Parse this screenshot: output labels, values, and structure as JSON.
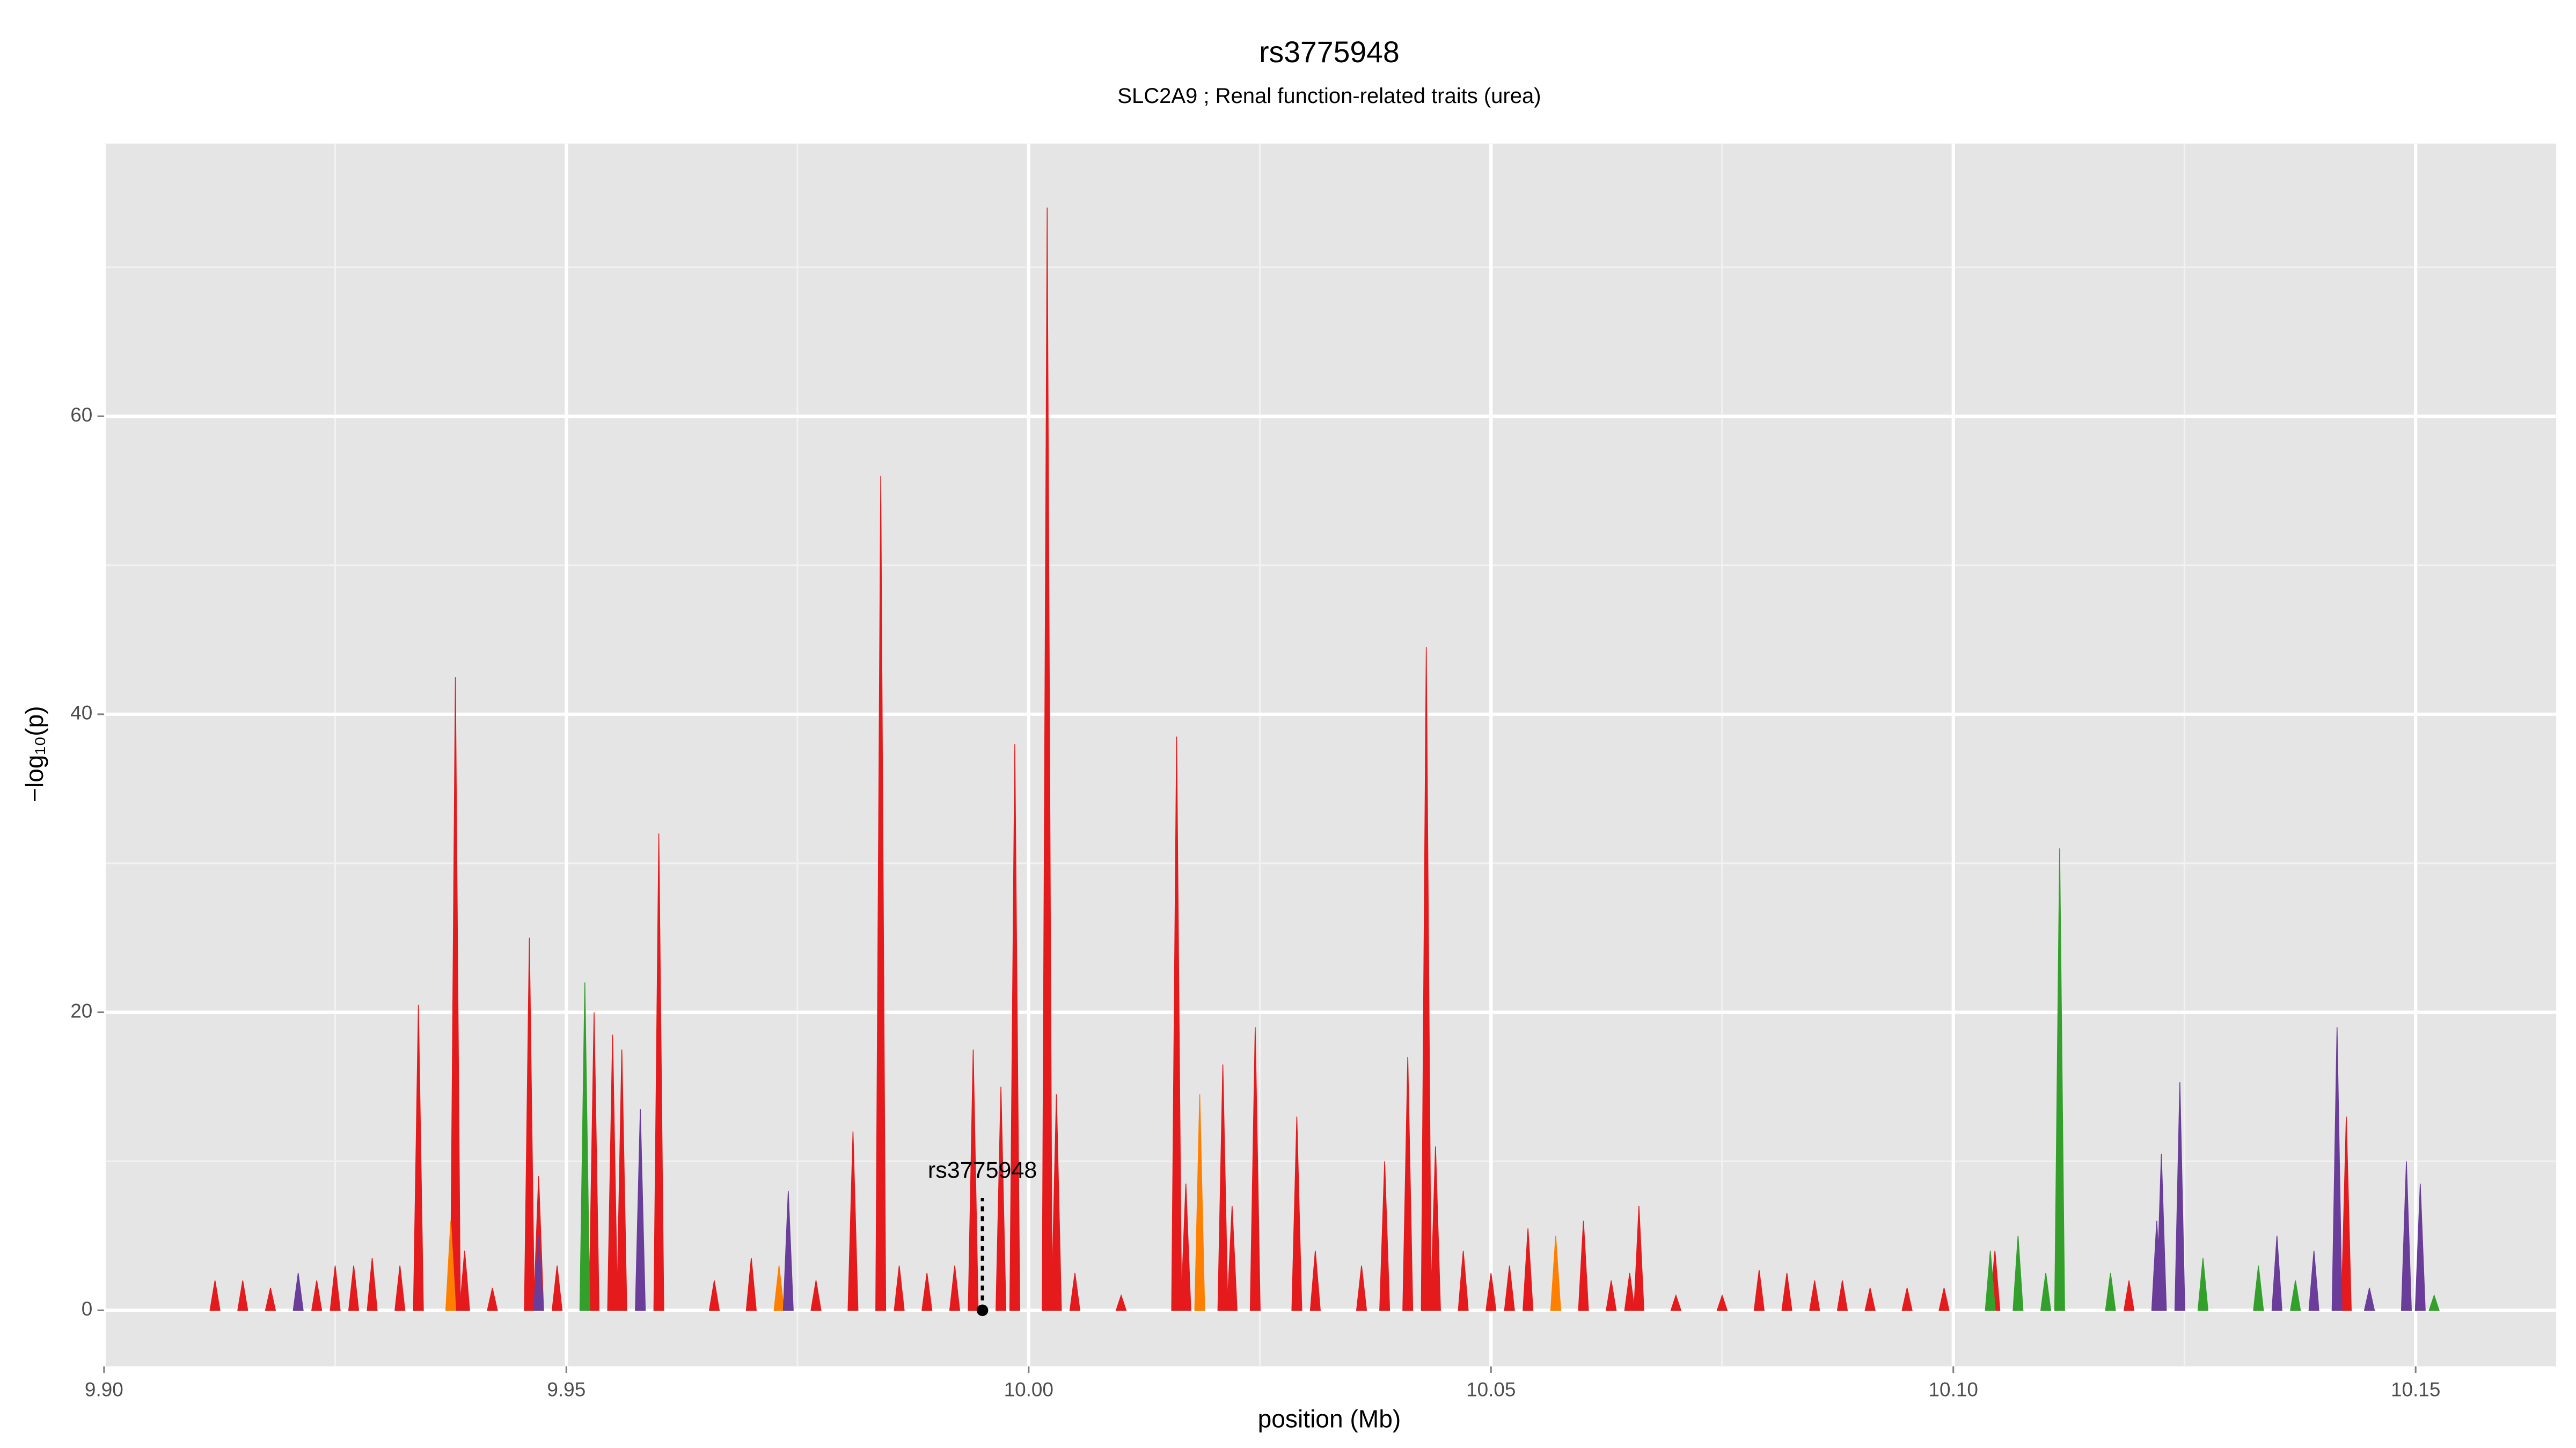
{
  "chart_data": {
    "type": "area",
    "title": "rs3775948",
    "subtitle": "SLC2A9 ; Renal function-related traits (urea)",
    "x_label": "position (Mb)",
    "y_label": "−log₁₀(p)",
    "xlim": [
      9.9,
      10.1652
    ],
    "ylim": [
      -3.76,
      78.3
    ],
    "xticks": [
      {
        "value": 9.9,
        "label": "9.90"
      },
      {
        "value": 9.95,
        "label": "9.95"
      },
      {
        "value": 10.0,
        "label": "10.00"
      },
      {
        "value": 10.05,
        "label": "10.05"
      },
      {
        "value": 10.1,
        "label": "10.10"
      },
      {
        "value": 10.15,
        "label": "10.15"
      }
    ],
    "yticks": [
      0,
      20,
      40,
      60
    ],
    "grid": true,
    "minor_grid": true,
    "series": [
      {
        "color": "#e41a1c",
        "x": [
          9.912,
          9.915,
          9.918,
          9.923,
          9.925,
          9.927,
          9.929,
          9.932,
          9.934,
          9.938,
          9.939,
          9.942,
          9.946,
          9.947,
          9.949,
          9.953,
          9.955,
          9.956,
          9.96,
          9.966,
          9.97,
          9.977,
          9.981,
          9.984,
          9.986,
          9.989,
          9.992,
          9.994,
          9.997,
          9.9985,
          10.002,
          10.003,
          10.005,
          10.01,
          10.016,
          10.017,
          10.021,
          10.022,
          10.0245,
          10.029,
          10.031,
          10.036,
          10.0385,
          10.041,
          10.043,
          10.044,
          10.047,
          10.05,
          10.052,
          10.054,
          10.06,
          10.063,
          10.065,
          10.066,
          10.07,
          10.075,
          10.079,
          10.082,
          10.085,
          10.088,
          10.091,
          10.095,
          10.099,
          10.1045,
          10.119,
          10.1425
        ],
        "values": [
          2,
          2,
          1.5,
          2,
          3,
          3,
          3.5,
          3,
          20.5,
          42.5,
          4,
          1.5,
          25,
          9,
          3,
          20,
          18.5,
          17.5,
          32,
          2,
          3.5,
          2,
          12,
          56,
          3,
          2.5,
          3,
          17.5,
          15,
          38,
          74,
          14.5,
          2.5,
          1,
          38.5,
          8.5,
          16.5,
          7,
          19,
          13,
          4,
          3,
          10,
          17,
          44.5,
          11,
          4,
          2.5,
          3,
          5.5,
          6,
          2,
          2.5,
          7,
          1,
          1,
          2.7,
          2.5,
          2,
          2,
          1.5,
          1.5,
          1.5,
          4,
          2,
          13
        ]
      },
      {
        "color": "#ff7f00",
        "x": [
          9.9375,
          9.973,
          10.0185,
          10.057
        ],
        "values": [
          6,
          3,
          14.5,
          5
        ]
      },
      {
        "color": "#33a02c",
        "x": [
          9.952,
          10.104,
          10.107,
          10.11,
          10.1115,
          10.117,
          10.127,
          10.133,
          10.137,
          10.152
        ],
        "values": [
          22,
          4,
          5,
          2.5,
          31,
          2.5,
          3.5,
          3,
          2,
          1
        ]
      },
      {
        "color": "#6a3d9a",
        "x": [
          9.921,
          9.947,
          9.958,
          9.974,
          10.122,
          10.1225,
          10.1245,
          10.135,
          10.139,
          10.1415,
          10.145,
          10.149,
          10.1505
        ],
        "values": [
          2.5,
          5,
          13.5,
          8,
          6,
          10.5,
          15.3,
          5,
          4,
          19,
          1.5,
          10,
          8.5
        ]
      }
    ],
    "annotations": [
      {
        "label": "rs3775948",
        "x": 9.995,
        "y": 0
      }
    ]
  }
}
